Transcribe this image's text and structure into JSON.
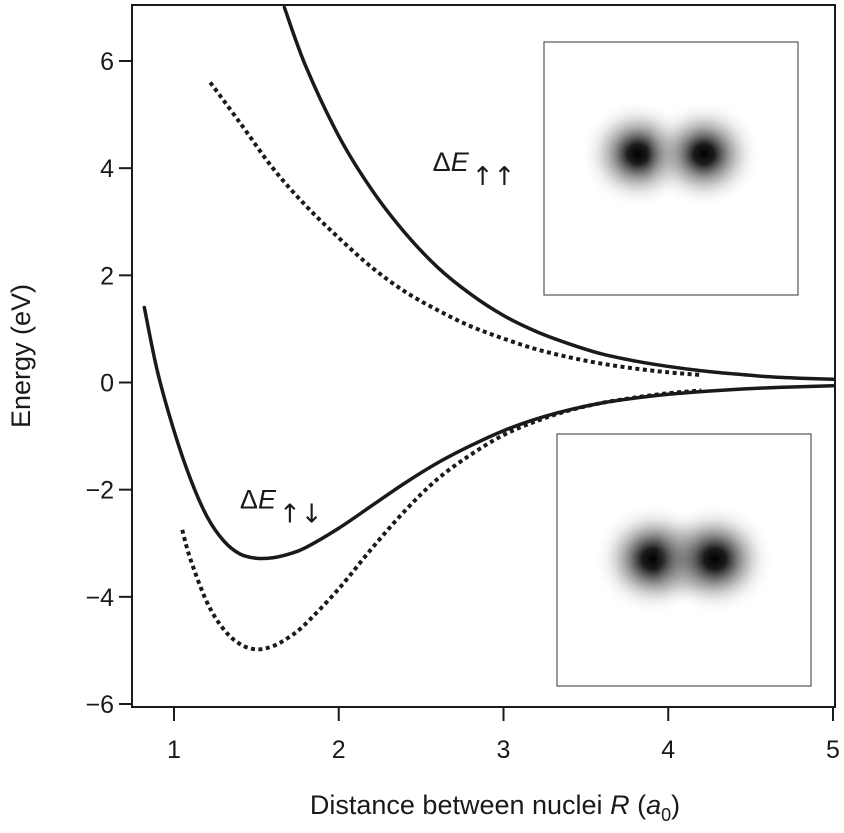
{
  "chart_data": {
    "type": "line",
    "xlabel": "Distance between nuclei R (a0)",
    "xlabel_parts": {
      "prefix": "Distance between nuclei ",
      "var": "R",
      "unit_open": " (",
      "unit": "a",
      "unit_sub": "0",
      "unit_close": ")"
    },
    "ylabel": "Energy (eV)",
    "xlim": [
      0.8,
      5.0
    ],
    "ylim": [
      -6.0,
      7.0
    ],
    "xticks": [
      1,
      2,
      3,
      4,
      5
    ],
    "yticks": [
      -6,
      -4,
      -2,
      0,
      2,
      4,
      6
    ],
    "ytick_labels": [
      "−6",
      "−4",
      "−2",
      "0",
      "2",
      "4",
      "6"
    ],
    "grid": false,
    "series": [
      {
        "name": "antibonding (solid)",
        "style": "solid",
        "x": [
          1.67,
          1.8,
          2.0,
          2.2,
          2.4,
          2.6,
          2.8,
          3.0,
          3.2,
          3.4,
          3.6,
          3.8,
          4.0,
          4.2,
          4.4,
          4.6,
          4.8,
          5.0
        ],
        "y": [
          7.0,
          5.9,
          4.6,
          3.6,
          2.8,
          2.15,
          1.65,
          1.25,
          0.95,
          0.72,
          0.53,
          0.4,
          0.3,
          0.22,
          0.16,
          0.11,
          0.08,
          0.06
        ]
      },
      {
        "name": "antibonding (dotted)",
        "style": "dotted",
        "x": [
          1.22,
          1.4,
          1.6,
          1.8,
          2.0,
          2.2,
          2.4,
          2.6,
          2.8,
          3.0,
          3.2,
          3.4,
          3.6,
          3.8,
          4.0,
          4.2
        ],
        "y": [
          5.6,
          4.85,
          4.0,
          3.3,
          2.7,
          2.15,
          1.7,
          1.35,
          1.05,
          0.82,
          0.62,
          0.47,
          0.35,
          0.26,
          0.19,
          0.14
        ]
      },
      {
        "name": "bonding (solid)",
        "style": "solid",
        "x": [
          0.82,
          0.9,
          1.0,
          1.1,
          1.2,
          1.3,
          1.4,
          1.5,
          1.6,
          1.7,
          1.8,
          2.0,
          2.2,
          2.4,
          2.6,
          2.8,
          3.0,
          3.2,
          3.4,
          3.6,
          3.8,
          4.0,
          4.2,
          4.4,
          4.6,
          4.8,
          5.0
        ],
        "y": [
          1.4,
          0.2,
          -0.9,
          -1.8,
          -2.5,
          -2.95,
          -3.2,
          -3.28,
          -3.27,
          -3.2,
          -3.08,
          -2.72,
          -2.3,
          -1.88,
          -1.5,
          -1.18,
          -0.9,
          -0.68,
          -0.51,
          -0.38,
          -0.29,
          -0.22,
          -0.17,
          -0.13,
          -0.1,
          -0.08,
          -0.06
        ]
      },
      {
        "name": "bonding (dotted)",
        "style": "dotted",
        "x": [
          1.05,
          1.1,
          1.2,
          1.3,
          1.4,
          1.5,
          1.6,
          1.7,
          1.8,
          2.0,
          2.2,
          2.4,
          2.6,
          2.8,
          3.0,
          3.2,
          3.4,
          3.6,
          3.8,
          4.0,
          4.2
        ],
        "y": [
          -2.75,
          -3.3,
          -4.1,
          -4.6,
          -4.88,
          -4.98,
          -4.92,
          -4.75,
          -4.5,
          -3.85,
          -3.1,
          -2.4,
          -1.8,
          -1.35,
          -0.98,
          -0.72,
          -0.52,
          -0.38,
          -0.28,
          -0.2,
          -0.15
        ]
      }
    ],
    "annotations": [
      {
        "id": "parallel",
        "symbol": "Δ",
        "var": "E",
        "spins": "↑↑",
        "x": 2.57,
        "y": 3.95
      },
      {
        "id": "antiparallel",
        "symbol": "Δ",
        "var": "E",
        "spins": "↑↓",
        "x": 1.4,
        "y": -2.35
      }
    ],
    "insets": [
      {
        "id": "parallel-density",
        "description": "electron density, parallel spins",
        "blob_separation_px": 66,
        "bridged": false
      },
      {
        "id": "antiparallel-density",
        "description": "electron density, antiparallel spins",
        "blob_separation_px": 62,
        "bridged": true
      }
    ]
  }
}
